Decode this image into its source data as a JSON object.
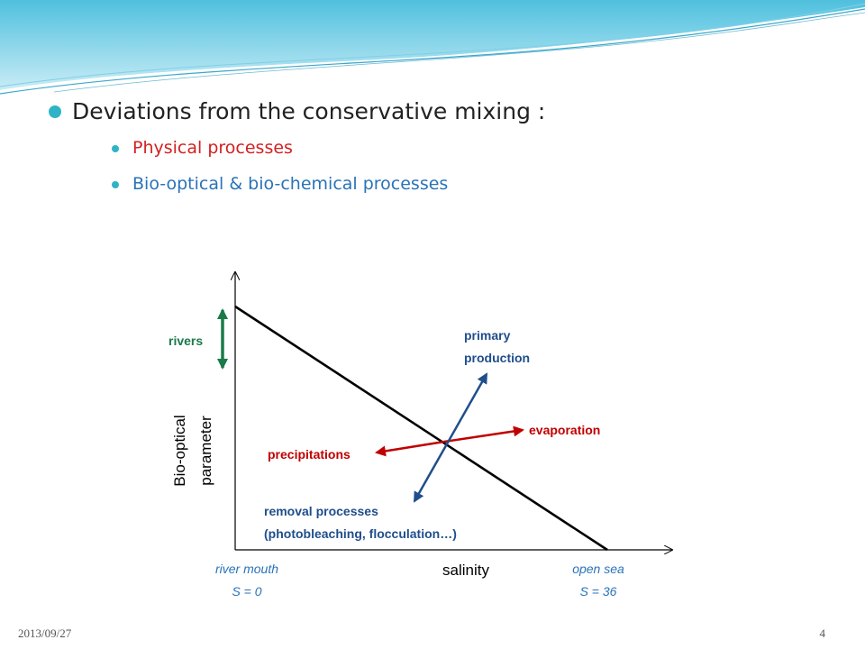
{
  "slide": {
    "title": "Deviations from the conservative mixing :",
    "sub_bullets": [
      {
        "text": "Physical processes",
        "color": "#d42020"
      },
      {
        "text": "Bio-optical & bio-chemical processes",
        "color": "#2a73b8"
      }
    ],
    "footer_date": "2013/09/27",
    "page_number": "4"
  },
  "diagram": {
    "y_axis_label_line1": "Bio-optical",
    "y_axis_label_line2": "parameter",
    "x_axis_label": "salinity",
    "left_end_label": "river mouth",
    "left_end_value": "S = 0",
    "right_end_label": "open sea",
    "right_end_value": "S = 36",
    "rivers_label": "rivers",
    "primary_production_line1": "primary",
    "primary_production_line2": "production",
    "evaporation_label": "evaporation",
    "precipitations_label": "precipitations",
    "removal_line1": "removal  processes",
    "removal_line2": "(photobleaching,  flocculation…)",
    "colors": {
      "rivers": "#1a7a4a",
      "physical": "#c00000",
      "biological": "#1f4e8c",
      "mixing_line": "#000000",
      "accent": "#2fb3c7"
    }
  }
}
